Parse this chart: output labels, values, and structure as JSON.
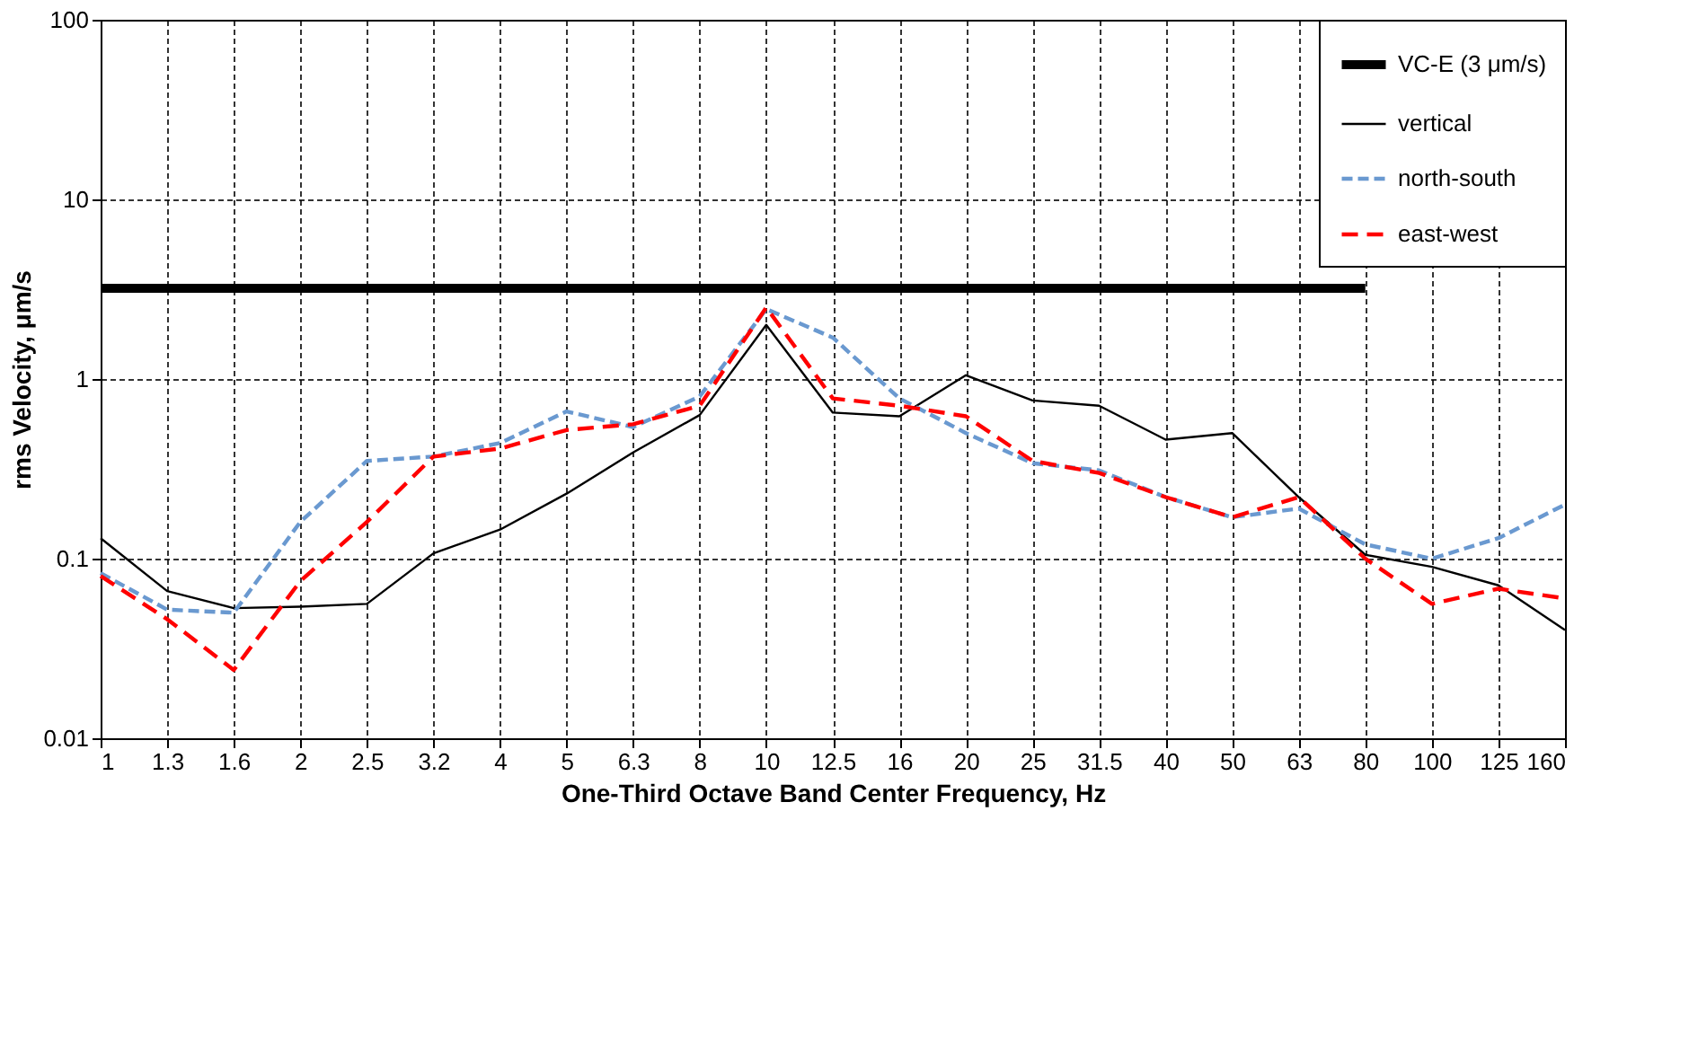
{
  "chart_data": {
    "type": "line",
    "xlabel": "One-Third Octave Band Center Frequency, Hz",
    "ylabel": "rms Velocity, μm/s",
    "categories": [
      "1",
      "1.3",
      "1.6",
      "2",
      "2.5",
      "3.2",
      "4",
      "5",
      "6.3",
      "8",
      "10",
      "12.5",
      "16",
      "20",
      "25",
      "31.5",
      "40",
      "50",
      "63",
      "80",
      "100",
      "125",
      "160"
    ],
    "series": [
      {
        "name": "VC-E (3 μm/s)",
        "color": "#000000",
        "line_style": "solid",
        "values": [
          3.2,
          3.2,
          3.2,
          3.2,
          3.2,
          3.2,
          3.2,
          3.2,
          3.2,
          3.2,
          3.2,
          3.2,
          3.2,
          3.2,
          3.2,
          3.2,
          3.2,
          3.2,
          3.2,
          3.2,
          null,
          null,
          null
        ]
      },
      {
        "name": "vertical",
        "color": "#000000",
        "line_style": "solid",
        "values": [
          0.13,
          0.066,
          0.053,
          0.054,
          0.056,
          0.107,
          0.145,
          0.23,
          0.39,
          0.63,
          2.0,
          0.65,
          0.62,
          1.05,
          0.76,
          0.71,
          0.46,
          0.5,
          0.22,
          0.105,
          0.09,
          0.071,
          0.04
        ]
      },
      {
        "name": "north-south",
        "color": "#6a99d0",
        "line_style": "dashed",
        "values": [
          0.083,
          0.052,
          0.05,
          0.16,
          0.35,
          0.37,
          0.44,
          0.66,
          0.54,
          0.8,
          2.45,
          1.7,
          0.78,
          0.5,
          0.34,
          0.31,
          0.22,
          0.17,
          0.19,
          0.12,
          0.1,
          0.13,
          0.2
        ]
      },
      {
        "name": "east-west",
        "color": "#ff0000",
        "line_style": "dashed",
        "values": [
          0.08,
          0.046,
          0.024,
          0.075,
          0.16,
          0.37,
          0.41,
          0.52,
          0.56,
          0.71,
          2.5,
          0.78,
          0.71,
          0.62,
          0.35,
          0.3,
          0.22,
          0.17,
          0.22,
          0.1,
          0.056,
          0.068,
          0.06
        ]
      }
    ],
    "log": "y",
    "ylim": [
      0.01,
      100
    ],
    "yticks": [
      0.01,
      0.1,
      1,
      10,
      100
    ],
    "grid": true,
    "legend": "top right"
  }
}
